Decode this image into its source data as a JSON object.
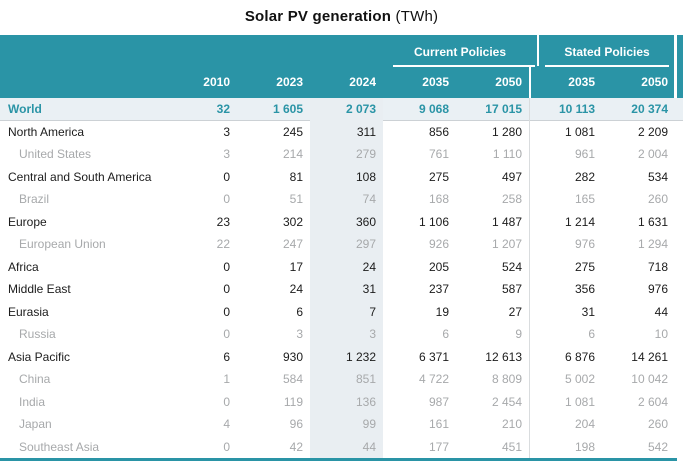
{
  "title": {
    "main": "Solar PV generation",
    "unit": "(TWh)"
  },
  "colors": {
    "header_teal": "#2a94a6",
    "world_row_bg": "#eaf0f4",
    "col_2024_shade": "#e9eef2",
    "sub_row_text": "#a7a9ab",
    "region_row_text": "#1c1c1c",
    "group_divider": "#d9dcde"
  },
  "table": {
    "group_headers": [
      {
        "label": "Current Policies"
      },
      {
        "label": "Stated Policies"
      }
    ],
    "year_headers": [
      "2010",
      "2023",
      "2024",
      "2035",
      "2050",
      "2035",
      "2050"
    ],
    "rows": [
      {
        "name": "World",
        "type": "world",
        "values": [
          "32",
          "1 605",
          "2 073",
          "9 068",
          "17 015",
          "10 113",
          "20 374"
        ]
      },
      {
        "name": "North America",
        "type": "region",
        "values": [
          "3",
          "245",
          "311",
          "856",
          "1 280",
          "1 081",
          "2 209"
        ]
      },
      {
        "name": "United States",
        "type": "sub",
        "values": [
          "3",
          "214",
          "279",
          "761",
          "1 110",
          "961",
          "2 004"
        ]
      },
      {
        "name": "Central and South America",
        "type": "region",
        "values": [
          "0",
          "81",
          "108",
          "275",
          "497",
          "282",
          "534"
        ]
      },
      {
        "name": "Brazil",
        "type": "sub",
        "values": [
          "0",
          "51",
          "74",
          "168",
          "258",
          "165",
          "260"
        ]
      },
      {
        "name": "Europe",
        "type": "region",
        "values": [
          "23",
          "302",
          "360",
          "1 106",
          "1 487",
          "1 214",
          "1 631"
        ]
      },
      {
        "name": "European Union",
        "type": "sub",
        "values": [
          "22",
          "247",
          "297",
          "926",
          "1 207",
          "976",
          "1 294"
        ]
      },
      {
        "name": "Africa",
        "type": "region",
        "values": [
          "0",
          "17",
          "24",
          "205",
          "524",
          "275",
          "718"
        ]
      },
      {
        "name": "Middle East",
        "type": "region",
        "values": [
          "0",
          "24",
          "31",
          "237",
          "587",
          "356",
          "976"
        ]
      },
      {
        "name": "Eurasia",
        "type": "region",
        "values": [
          "0",
          "6",
          "7",
          "19",
          "27",
          "31",
          "44"
        ]
      },
      {
        "name": "Russia",
        "type": "sub",
        "values": [
          "0",
          "3",
          "3",
          "6",
          "9",
          "6",
          "10"
        ]
      },
      {
        "name": "Asia Pacific",
        "type": "region",
        "values": [
          "6",
          "930",
          "1 232",
          "6 371",
          "12 613",
          "6 876",
          "14 261"
        ]
      },
      {
        "name": "China",
        "type": "sub",
        "values": [
          "1",
          "584",
          "851",
          "4 722",
          "8 809",
          "5 002",
          "10 042"
        ]
      },
      {
        "name": "India",
        "type": "sub",
        "values": [
          "0",
          "119",
          "136",
          "987",
          "2 454",
          "1 081",
          "2 604"
        ]
      },
      {
        "name": "Japan",
        "type": "sub",
        "values": [
          "4",
          "96",
          "99",
          "161",
          "210",
          "204",
          "260"
        ]
      },
      {
        "name": "Southeast Asia",
        "type": "sub",
        "values": [
          "0",
          "42",
          "44",
          "177",
          "451",
          "198",
          "542"
        ]
      }
    ]
  },
  "chart_data": {
    "type": "table",
    "title": "Solar PV generation (TWh)",
    "columns": [
      "2010",
      "2023",
      "2024",
      "Current Policies 2035",
      "Current Policies 2050",
      "Stated Policies 2035",
      "Stated Policies 2050"
    ],
    "rows": [
      {
        "region": "World",
        "values": [
          32,
          1605,
          2073,
          9068,
          17015,
          10113,
          20374
        ]
      },
      {
        "region": "North America",
        "values": [
          3,
          245,
          311,
          856,
          1280,
          1081,
          2209
        ]
      },
      {
        "region": "United States",
        "values": [
          3,
          214,
          279,
          761,
          1110,
          961,
          2004
        ]
      },
      {
        "region": "Central and South America",
        "values": [
          0,
          81,
          108,
          275,
          497,
          282,
          534
        ]
      },
      {
        "region": "Brazil",
        "values": [
          0,
          51,
          74,
          168,
          258,
          165,
          260
        ]
      },
      {
        "region": "Europe",
        "values": [
          23,
          302,
          360,
          1106,
          1487,
          1214,
          1631
        ]
      },
      {
        "region": "European Union",
        "values": [
          22,
          247,
          297,
          926,
          1207,
          976,
          1294
        ]
      },
      {
        "region": "Africa",
        "values": [
          0,
          17,
          24,
          205,
          524,
          275,
          718
        ]
      },
      {
        "region": "Middle East",
        "values": [
          0,
          24,
          31,
          237,
          587,
          356,
          976
        ]
      },
      {
        "region": "Eurasia",
        "values": [
          0,
          6,
          7,
          19,
          27,
          31,
          44
        ]
      },
      {
        "region": "Russia",
        "values": [
          0,
          3,
          3,
          6,
          9,
          6,
          10
        ]
      },
      {
        "region": "Asia Pacific",
        "values": [
          6,
          930,
          1232,
          6371,
          12613,
          6876,
          14261
        ]
      },
      {
        "region": "China",
        "values": [
          1,
          584,
          851,
          4722,
          8809,
          5002,
          10042
        ]
      },
      {
        "region": "India",
        "values": [
          0,
          119,
          136,
          987,
          2454,
          1081,
          2604
        ]
      },
      {
        "region": "Japan",
        "values": [
          4,
          96,
          99,
          161,
          210,
          204,
          260
        ]
      },
      {
        "region": "Southeast Asia",
        "values": [
          0,
          42,
          44,
          177,
          451,
          198,
          542
        ]
      }
    ]
  }
}
